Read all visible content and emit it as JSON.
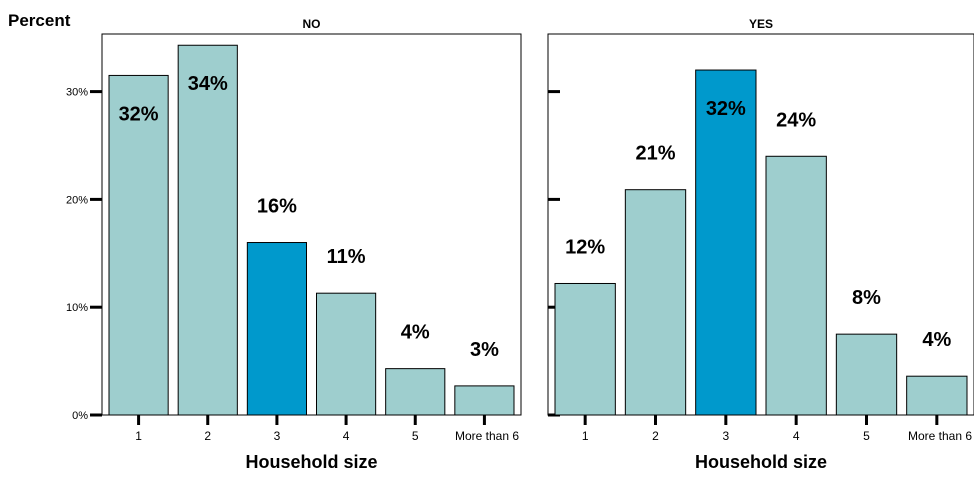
{
  "chart_data": {
    "type": "bar",
    "ylabel": "Percent",
    "xlabel": "Household size",
    "categories": [
      "1",
      "2",
      "3",
      "4",
      "5",
      "More than 6"
    ],
    "ylim": [
      0,
      36
    ],
    "yticks": [
      0,
      10,
      20,
      30
    ],
    "ytick_labels": [
      "0%",
      "10%",
      "20%",
      "30%"
    ],
    "grid": false,
    "colors": {
      "bar": "#9ecece",
      "highlight": "#0099cc",
      "outline": "#000000"
    },
    "panels": [
      {
        "title": "NO",
        "values": [
          31.5,
          34.3,
          16.0,
          11.3,
          4.3,
          2.7
        ],
        "labels": [
          "32%",
          "34%",
          "16%",
          "11%",
          "4%",
          "3%"
        ],
        "highlight_index": 2
      },
      {
        "title": "YES",
        "values": [
          12.2,
          20.9,
          32.0,
          24.0,
          7.5,
          3.6
        ],
        "labels": [
          "12%",
          "21%",
          "32%",
          "24%",
          "8%",
          "4%"
        ],
        "highlight_index": 2
      }
    ]
  }
}
